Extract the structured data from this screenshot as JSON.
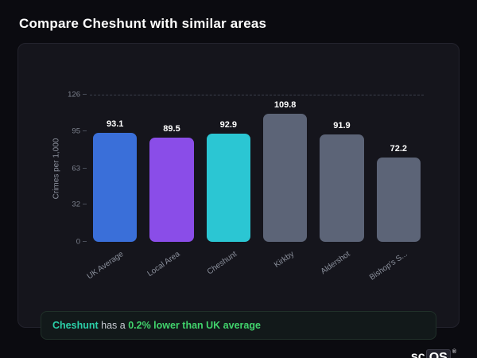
{
  "page": {
    "title": "Compare Cheshunt with similar areas"
  },
  "chart_data": {
    "type": "bar",
    "categories": [
      "UK Average",
      "Local Area",
      "Cheshunt",
      "Kirkby",
      "Aldershot",
      "Bishop's S..."
    ],
    "values": [
      93.1,
      89.5,
      92.9,
      109.8,
      91.9,
      72.2
    ],
    "value_labels": [
      "93.1",
      "89.5",
      "92.9",
      "109.8",
      "91.9",
      "72.2"
    ],
    "colors": [
      "#3a6fd9",
      "#8a4de8",
      "#2bc6d3",
      "#5c6477",
      "#5c6477",
      "#5c6477"
    ],
    "title": "",
    "xlabel": "",
    "ylabel": "Crimes per 1,000",
    "yticks": [
      0,
      32,
      63,
      95,
      126
    ],
    "ylim": [
      0,
      126
    ],
    "grid": "dashed line at top tick only",
    "legend": "none"
  },
  "footer": {
    "area": "Cheshunt",
    "connector": "has a",
    "stat": "0.2% lower than UK average"
  },
  "accent_colors": {
    "footer_area": "#2bcfa8",
    "footer_stat": "#41d36c"
  },
  "logo": {
    "prefix": "sc",
    "boxed": "OS",
    "registered": "®"
  }
}
